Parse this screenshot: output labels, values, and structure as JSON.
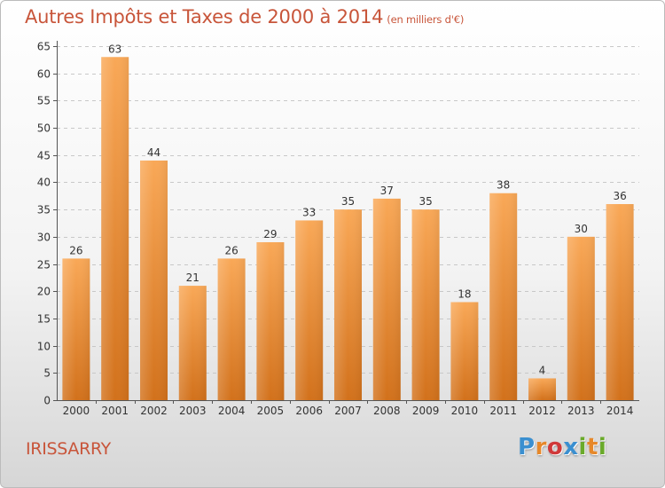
{
  "header": {
    "title": "Autres Impôts et Taxes de 2000 à 2014",
    "unit": "(en milliers d'€)"
  },
  "footer": {
    "place": "IRISSARRY",
    "brand": "Proxiti",
    "brand_colors": [
      "#3a8fd0",
      "#e6882a",
      "#d0393a",
      "#3a8fd0",
      "#6aaa2a",
      "#e6882a",
      "#6aaa2a"
    ]
  },
  "colors": {
    "title": "#c8553a",
    "bar_top": "#f9a857",
    "bar_bottom": "#d2711b",
    "grid": "#c8c8c8"
  },
  "chart_data": {
    "type": "bar",
    "title": "Autres Impôts et Taxes de 2000 à 2014",
    "subtitle": "(en milliers d'€)",
    "xlabel": "",
    "ylabel": "",
    "categories": [
      "2000",
      "2001",
      "2002",
      "2003",
      "2004",
      "2005",
      "2006",
      "2007",
      "2008",
      "2009",
      "2010",
      "2011",
      "2012",
      "2013",
      "2014"
    ],
    "values": [
      26,
      63,
      44,
      21,
      26,
      29,
      33,
      35,
      37,
      35,
      18,
      38,
      4,
      30,
      36
    ],
    "ylim": [
      0,
      65
    ],
    "yticks": [
      0,
      5,
      10,
      15,
      20,
      25,
      30,
      35,
      40,
      45,
      50,
      55,
      60,
      65
    ],
    "grid": true,
    "data_labels": true
  }
}
